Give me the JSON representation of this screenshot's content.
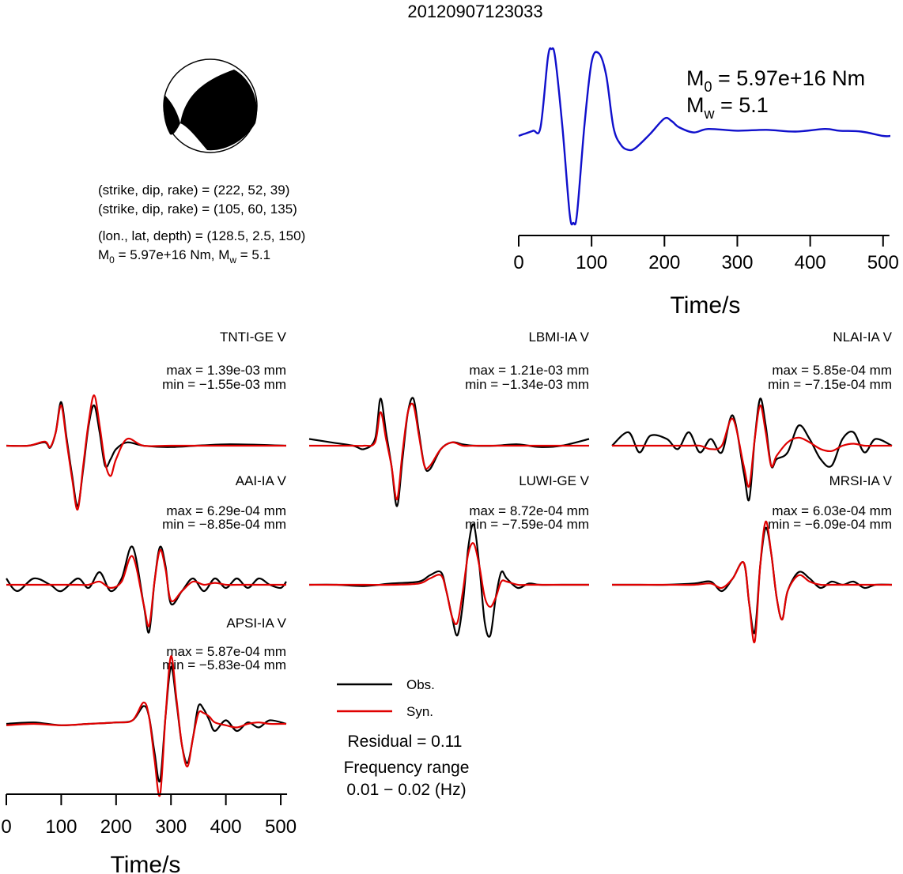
{
  "event_id": "20120907123033",
  "colors": {
    "observed": "#000000",
    "synthetic": "#e00000",
    "stf": "#1010cc",
    "beachball_fill": "#000000"
  },
  "mechanism": {
    "plane1_text": "(strike, dip, rake) = (222, 52, 39)",
    "plane2_text": "(strike, dip, rake) = (105, 60, 135)",
    "location_text": "(lon., lat, depth) = (128.5, 2.5, 150)",
    "moment_prefix": "M",
    "moment_sub": "0",
    "moment_text": " = 5.97e+16 Nm, M",
    "mw_sub": "w",
    "mw_text": " = 5.1"
  },
  "stf_panel": {
    "m0_sym": "M",
    "m0_sub": "0",
    "m0_text": " = 5.97e+16 Nm",
    "mw_sym": "M",
    "mw_sub": "w",
    "mw_text": " = 5.1",
    "xlabel": "Time/s"
  },
  "wave_axis": {
    "xlabel": "Time/s"
  },
  "legend": {
    "obs": "Obs.",
    "syn": "Syn."
  },
  "residual_text": "Residual = 0.11",
  "frequency_label": "Frequency range",
  "frequency_range": "0.01 − 0.02 (Hz)",
  "chart_data": [
    {
      "type": "line",
      "name": "source_time_function",
      "xlim": [
        0,
        510
      ],
      "xticks": [
        0,
        100,
        200,
        300,
        400,
        500
      ],
      "xlabel": "Time/s",
      "x": [
        0,
        10,
        20,
        30,
        40,
        45,
        50,
        60,
        70,
        75,
        80,
        90,
        100,
        110,
        120,
        130,
        140,
        150,
        160,
        180,
        200,
        210,
        220,
        240,
        260,
        300,
        340,
        380,
        420,
        440,
        470,
        500,
        510
      ],
      "y": [
        0,
        0.03,
        0.06,
        0.1,
        0.9,
        1.0,
        0.9,
        0.1,
        -0.9,
        -1.0,
        -0.9,
        0.1,
        0.85,
        0.95,
        0.7,
        0.1,
        -0.1,
        -0.16,
        -0.14,
        0.02,
        0.2,
        0.17,
        0.1,
        0.04,
        0.08,
        0.06,
        0.07,
        0.05,
        0.08,
        0.06,
        0.05,
        0.0,
        0.0
      ]
    },
    {
      "type": "line",
      "station": "TNTI-GE V",
      "max_text": "max = 1.39e-03 mm",
      "min_text": "min = −1.55e-03 mm",
      "xlim": [
        0,
        510
      ],
      "series": [
        {
          "name": "Obs.",
          "x": [
            0,
            40,
            70,
            80,
            90,
            100,
            110,
            120,
            130,
            140,
            150,
            160,
            170,
            180,
            190,
            200,
            220,
            250,
            300,
            400,
            510
          ],
          "y": [
            0,
            0,
            0.05,
            -0.03,
            0.2,
            0.65,
            0.1,
            -0.45,
            -0.9,
            -0.35,
            0.3,
            0.6,
            0.2,
            -0.3,
            -0.2,
            -0.05,
            0.05,
            0.0,
            -0.02,
            0.02,
            0
          ]
        },
        {
          "name": "Syn.",
          "x": [
            0,
            40,
            70,
            80,
            90,
            100,
            110,
            120,
            130,
            140,
            150,
            160,
            170,
            180,
            190,
            200,
            220,
            250,
            300,
            400,
            510
          ],
          "y": [
            0,
            0,
            0.06,
            -0.02,
            0.2,
            0.6,
            0.05,
            -0.5,
            -0.95,
            -0.3,
            0.35,
            0.75,
            0.3,
            -0.25,
            -0.45,
            -0.2,
            0.1,
            0.0,
            0.0,
            0.0,
            0
          ]
        }
      ]
    },
    {
      "type": "line",
      "station": "LBMI-IA V",
      "max_text": "max = 1.21e-03 mm",
      "min_text": "min = −1.34e-03 mm",
      "xlim": [
        0,
        510
      ],
      "series": [
        {
          "name": "Obs.",
          "x": [
            0,
            40,
            80,
            100,
            120,
            130,
            140,
            150,
            160,
            170,
            180,
            190,
            200,
            210,
            220,
            240,
            260,
            280,
            300,
            340,
            380,
            420,
            460,
            510
          ],
          "y": [
            0.1,
            0.05,
            0.0,
            -0.05,
            0.1,
            0.7,
            0.2,
            -0.3,
            -0.9,
            -0.2,
            0.5,
            0.7,
            0.2,
            -0.3,
            -0.35,
            -0.05,
            0.05,
            0.02,
            0.0,
            0.0,
            0.02,
            -0.02,
            0.0,
            0.1
          ]
        },
        {
          "name": "Syn.",
          "x": [
            0,
            40,
            80,
            100,
            120,
            130,
            140,
            150,
            160,
            170,
            180,
            190,
            200,
            210,
            220,
            240,
            260,
            280,
            300,
            340,
            380,
            420,
            460,
            510
          ],
          "y": [
            0,
            0,
            0,
            0,
            0.05,
            0.5,
            0.1,
            -0.3,
            -0.8,
            -0.1,
            0.5,
            0.6,
            0.15,
            -0.3,
            -0.3,
            -0.05,
            0.05,
            0,
            0,
            0,
            0,
            0,
            0,
            0
          ]
        }
      ]
    },
    {
      "type": "line",
      "station": "NLAI-IA V",
      "max_text": "max = 5.85e-04 mm",
      "min_text": "min = −7.15e-04 mm",
      "xlim": [
        0,
        510
      ],
      "series": [
        {
          "name": "Obs.",
          "x": [
            0,
            30,
            50,
            70,
            100,
            120,
            140,
            160,
            180,
            200,
            220,
            240,
            250,
            260,
            270,
            280,
            290,
            300,
            320,
            340,
            360,
            380,
            400,
            420,
            440,
            460,
            480,
            510
          ],
          "y": [
            0,
            0.2,
            -0.1,
            0.15,
            0.1,
            -0.05,
            0.2,
            -0.1,
            0.1,
            -0.1,
            0.45,
            -0.4,
            -0.8,
            0.1,
            0.7,
            0.3,
            -0.3,
            -0.2,
            -0.1,
            0.3,
            0.1,
            -0.2,
            -0.3,
            0.1,
            0.2,
            -0.1,
            0.1,
            0
          ]
        },
        {
          "name": "Syn.",
          "x": [
            0,
            30,
            50,
            70,
            100,
            120,
            140,
            160,
            180,
            200,
            220,
            240,
            250,
            260,
            270,
            280,
            290,
            300,
            320,
            340,
            360,
            380,
            400,
            420,
            440,
            460,
            480,
            510
          ],
          "y": [
            0,
            0,
            0,
            0,
            0,
            0,
            0,
            0,
            -0.05,
            0,
            0.4,
            -0.3,
            -0.6,
            0.1,
            0.6,
            0.2,
            -0.3,
            -0.15,
            0.05,
            0.12,
            0.05,
            -0.05,
            -0.08,
            0.0,
            0.03,
            0,
            0,
            0
          ]
        }
      ]
    },
    {
      "type": "line",
      "station": "AAI-IA V",
      "max_text": "max = 6.29e-04 mm",
      "min_text": "min = −8.85e-04 mm",
      "xlim": [
        0,
        510
      ],
      "series": [
        {
          "name": "Obs.",
          "x": [
            0,
            20,
            50,
            80,
            100,
            130,
            150,
            170,
            190,
            210,
            230,
            250,
            260,
            270,
            280,
            290,
            300,
            320,
            340,
            360,
            380,
            400,
            420,
            440,
            460,
            480,
            500,
            510
          ],
          "y": [
            0.1,
            -0.1,
            0.1,
            0.0,
            -0.1,
            0.1,
            -0.05,
            0.2,
            -0.1,
            0.1,
            0.6,
            -0.3,
            -0.75,
            0.05,
            0.6,
            0.3,
            -0.3,
            -0.1,
            0.1,
            -0.1,
            0.1,
            -0.05,
            0.1,
            -0.05,
            0.1,
            0.0,
            -0.05,
            0.05
          ]
        },
        {
          "name": "Syn.",
          "x": [
            0,
            20,
            50,
            80,
            100,
            130,
            150,
            170,
            190,
            210,
            230,
            250,
            260,
            270,
            280,
            290,
            300,
            320,
            340,
            360,
            380,
            400,
            420,
            440,
            460,
            480,
            500,
            510
          ],
          "y": [
            0,
            0,
            0,
            0,
            0,
            0,
            0,
            0.05,
            -0.05,
            0.05,
            0.45,
            -0.3,
            -0.65,
            0.05,
            0.55,
            0.25,
            -0.25,
            -0.1,
            0.05,
            0.0,
            0.03,
            0,
            0,
            0,
            0,
            0,
            0,
            0
          ]
        }
      ]
    },
    {
      "type": "line",
      "station": "LUWI-GE V",
      "max_text": "max = 8.72e-04 mm",
      "min_text": "min = −7.59e-04 mm",
      "xlim": [
        0,
        510
      ],
      "series": [
        {
          "name": "Obs.",
          "x": [
            0,
            50,
            100,
            150,
            200,
            220,
            240,
            250,
            260,
            270,
            280,
            290,
            300,
            310,
            320,
            330,
            340,
            350,
            360,
            380,
            400,
            420,
            460,
            510
          ],
          "y": [
            0,
            0.0,
            -0.02,
            0.02,
            0.05,
            0.15,
            0.2,
            -0.1,
            -0.5,
            -0.8,
            -0.3,
            0.6,
            0.95,
            0.3,
            -0.6,
            -0.8,
            -0.2,
            0.2,
            0.1,
            -0.05,
            0.02,
            0.0,
            0.0,
            0
          ]
        },
        {
          "name": "Syn.",
          "x": [
            0,
            50,
            100,
            150,
            200,
            220,
            240,
            250,
            260,
            270,
            280,
            290,
            300,
            310,
            320,
            330,
            340,
            350,
            360,
            380,
            400,
            420,
            460,
            510
          ],
          "y": [
            0,
            0,
            0,
            0,
            0.02,
            0.1,
            0.15,
            -0.1,
            -0.5,
            -0.6,
            -0.1,
            0.5,
            0.65,
            0.3,
            -0.2,
            -0.35,
            -0.2,
            0.05,
            0.05,
            0,
            0,
            0,
            0,
            0
          ]
        }
      ]
    },
    {
      "type": "line",
      "station": "MRSI-IA V",
      "max_text": "max = 6.03e-04 mm",
      "min_text": "min = −6.09e-04 mm",
      "xlim": [
        0,
        510
      ],
      "series": [
        {
          "name": "Obs.",
          "x": [
            0,
            50,
            100,
            150,
            180,
            200,
            220,
            240,
            250,
            260,
            270,
            280,
            290,
            300,
            310,
            320,
            340,
            360,
            380,
            400,
            420,
            440,
            460,
            480,
            510
          ],
          "y": [
            0,
            0,
            0,
            0.02,
            0.05,
            -0.1,
            0.1,
            0.35,
            -0.3,
            -0.75,
            0.3,
            0.9,
            0.5,
            -0.2,
            -0.55,
            -0.1,
            0.2,
            0.1,
            -0.05,
            0.05,
            0.0,
            0.05,
            -0.05,
            0.0,
            0
          ]
        },
        {
          "name": "Syn.",
          "x": [
            0,
            50,
            100,
            150,
            180,
            200,
            220,
            240,
            250,
            260,
            270,
            280,
            290,
            300,
            310,
            320,
            340,
            360,
            380,
            400,
            420,
            440,
            460,
            480,
            510
          ],
          "y": [
            0,
            0,
            0,
            0,
            0.02,
            -0.05,
            0.1,
            0.35,
            -0.3,
            -0.9,
            0.3,
            1.0,
            0.5,
            -0.2,
            -0.55,
            -0.1,
            0.15,
            0.05,
            0,
            0,
            0,
            0,
            0,
            0,
            0
          ]
        }
      ]
    },
    {
      "type": "line",
      "station": "APSI-IA V",
      "max_text": "max = 5.87e-04 mm",
      "min_text": "min = −5.83e-04 mm",
      "xlim": [
        0,
        510
      ],
      "xticks": [
        0,
        100,
        200,
        300,
        400,
        500
      ],
      "series": [
        {
          "name": "Obs.",
          "x": [
            0,
            50,
            100,
            150,
            200,
            230,
            250,
            260,
            270,
            280,
            290,
            300,
            310,
            320,
            330,
            340,
            350,
            360,
            370,
            380,
            400,
            420,
            440,
            460,
            480,
            510
          ],
          "y": [
            0,
            0.02,
            -0.02,
            0.0,
            0.02,
            0.05,
            0.25,
            0.1,
            -0.4,
            -0.8,
            0.1,
            0.8,
            0.3,
            -0.3,
            -0.55,
            -0.2,
            0.25,
            0.2,
            0.05,
            -0.1,
            0.05,
            -0.1,
            0.02,
            -0.05,
            0.05,
            0
          ]
        },
        {
          "name": "Syn.",
          "x": [
            0,
            50,
            100,
            150,
            200,
            230,
            250,
            260,
            270,
            280,
            290,
            300,
            310,
            320,
            330,
            340,
            350,
            360,
            370,
            380,
            400,
            420,
            440,
            460,
            480,
            510
          ],
          "y": [
            -0.02,
            0,
            -0.02,
            0,
            0.02,
            0.05,
            0.3,
            0.1,
            -0.5,
            -1.0,
            0.1,
            0.95,
            0.35,
            -0.3,
            -0.6,
            -0.2,
            0.15,
            0.15,
            0.1,
            0.02,
            -0.02,
            -0.05,
            0.0,
            0.02,
            0.0,
            0
          ]
        }
      ]
    }
  ]
}
